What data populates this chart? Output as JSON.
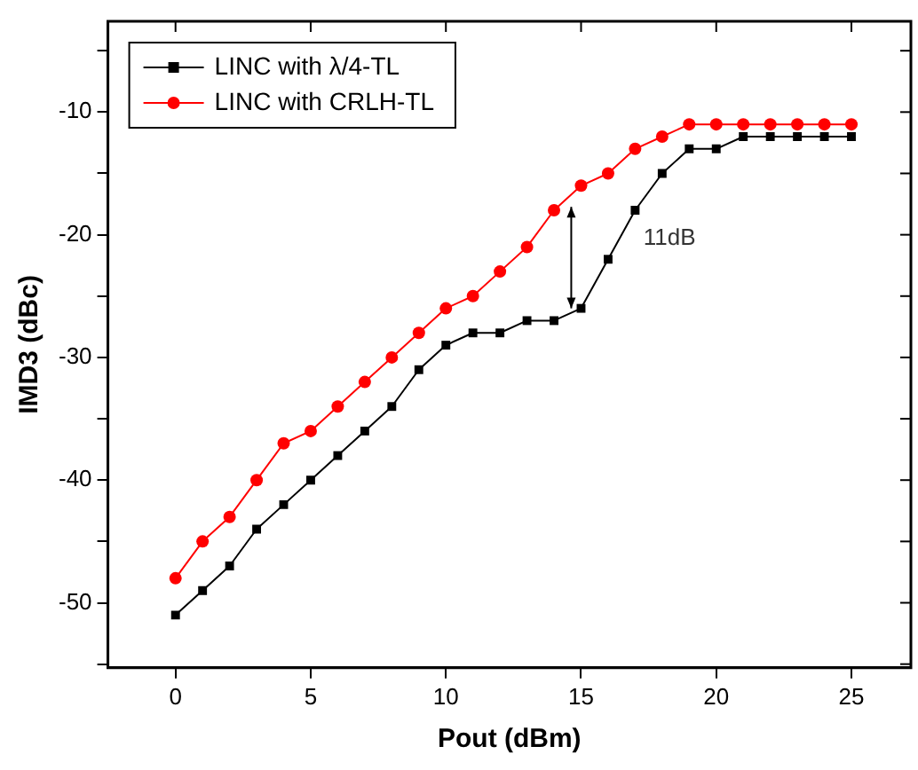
{
  "chart_data": {
    "type": "line",
    "xlabel": "Pout (dBm)",
    "ylabel": "IMD3 (dBc)",
    "x": [
      0,
      1,
      2,
      3,
      4,
      5,
      6,
      7,
      8,
      9,
      10,
      11,
      12,
      13,
      14,
      15,
      16,
      17,
      18,
      19,
      20,
      21,
      22,
      23,
      24,
      25
    ],
    "series": [
      {
        "name": "LINC with λ/4-TL",
        "color": "#000000",
        "marker": "square",
        "values": [
          -51,
          -49,
          -47,
          -44,
          -42,
          -40,
          -38,
          -36,
          -34,
          -31,
          -29,
          -28,
          -28,
          -27,
          -27,
          -26,
          -22,
          -18,
          -15,
          -13,
          -13,
          -12,
          -12,
          -12,
          -12,
          -12
        ]
      },
      {
        "name": "LINC with CRLH-TL",
        "color": "#ff0000",
        "marker": "circle",
        "values": [
          -48,
          -45,
          -43,
          -40,
          -37,
          -36,
          -34,
          -32,
          -30,
          -28,
          -26,
          -25,
          -23,
          -21,
          -18,
          -16,
          -15,
          -13,
          -12,
          -11,
          -11,
          -11,
          -11,
          -11,
          -11,
          -11
        ]
      }
    ],
    "xlim": [
      -2.5,
      27.2
    ],
    "xticks": [
      0,
      5,
      10,
      15,
      20,
      25
    ],
    "ylim": [
      -55.3,
      -2.6
    ],
    "yticks": [
      {
        "value": -55,
        "label": null
      },
      -50,
      {
        "value": -45,
        "label": null
      },
      -40,
      {
        "value": -35,
        "label": null
      },
      -30,
      {
        "value": -25,
        "label": null
      },
      -20,
      {
        "value": -15,
        "label": null
      },
      -10,
      {
        "value": -5,
        "label": null
      }
    ],
    "annotations": [
      "11dB"
    ],
    "legend": "top left",
    "grid": false,
    "line_style": "solid"
  }
}
